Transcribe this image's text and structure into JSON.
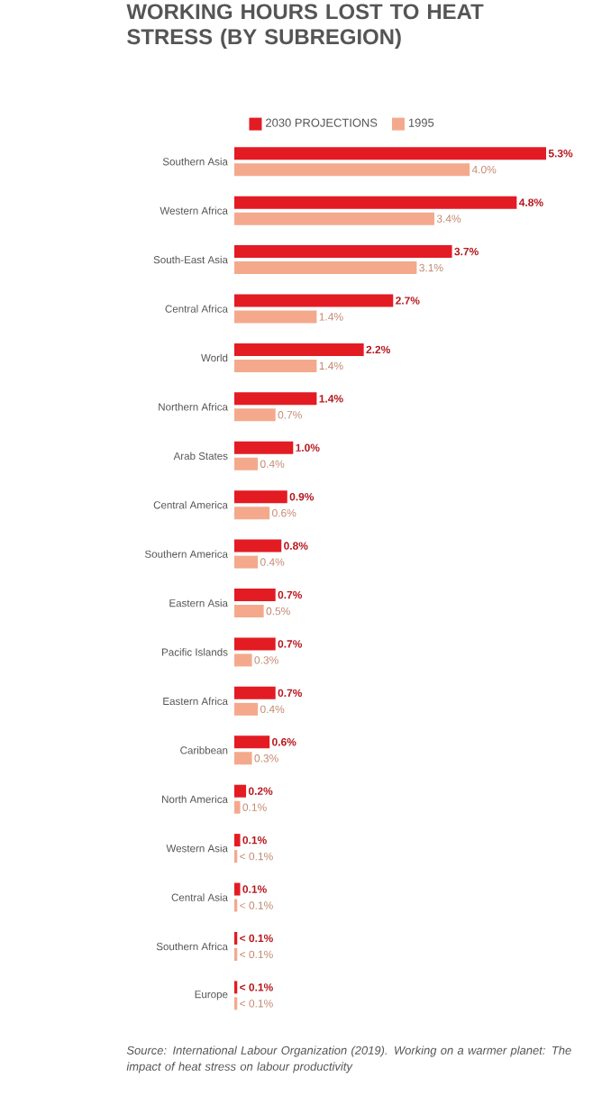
{
  "chart_data": {
    "type": "bar",
    "orientation": "horizontal",
    "title": "WORKING HOURS LOST TO HEAT STRESS (BY SUBREGION)",
    "categories": [
      "Southern Asia",
      "Western Africa",
      "South-East Asia",
      "Central Africa",
      "World",
      "Northern Africa",
      "Arab States",
      "Central America",
      "Southern America",
      "Eastern Asia",
      "Pacific Islands",
      "Eastern Africa",
      "Caribbean",
      "North America",
      "Western Asia",
      "Central Asia",
      "Southern Africa",
      "Europe"
    ],
    "series": [
      {
        "name": "2030 PROJECTIONS",
        "color": "#e31b23",
        "values": [
          5.3,
          4.8,
          3.7,
          2.7,
          2.2,
          1.4,
          1.0,
          0.9,
          0.8,
          0.7,
          0.7,
          0.7,
          0.6,
          0.2,
          0.1,
          0.1,
          0.05,
          0.05
        ],
        "value_labels": [
          "5.3%",
          "4.8%",
          "3.7%",
          "2.7%",
          "2.2%",
          "1.4%",
          "1.0%",
          "0.9%",
          "0.8%",
          "0.7%",
          "0.7%",
          "0.7%",
          "0.6%",
          "0.2%",
          "0.1%",
          "0.1%",
          "< 0.1%",
          "< 0.1%"
        ]
      },
      {
        "name": "1995",
        "color": "#f4a98c",
        "values": [
          4.0,
          3.4,
          3.1,
          1.4,
          1.4,
          0.7,
          0.4,
          0.6,
          0.4,
          0.5,
          0.3,
          0.4,
          0.3,
          0.1,
          0.05,
          0.05,
          0.05,
          0.05
        ],
        "value_labels": [
          "4.0%",
          "3.4%",
          "3.1%",
          "1.4%",
          "1.4%",
          "0.7%",
          "0.4%",
          "0.6%",
          "0.4%",
          "0.5%",
          "0.3%",
          "0.4%",
          "0.3%",
          "0.1%",
          "< 0.1%",
          "< 0.1%",
          "< 0.1%",
          "< 0.1%"
        ]
      }
    ],
    "legend": "top",
    "annotations": [
      "Source: International Labour Organization (2019). Working on a warmer planet: The impact of heat stress on labour productivity"
    ]
  }
}
